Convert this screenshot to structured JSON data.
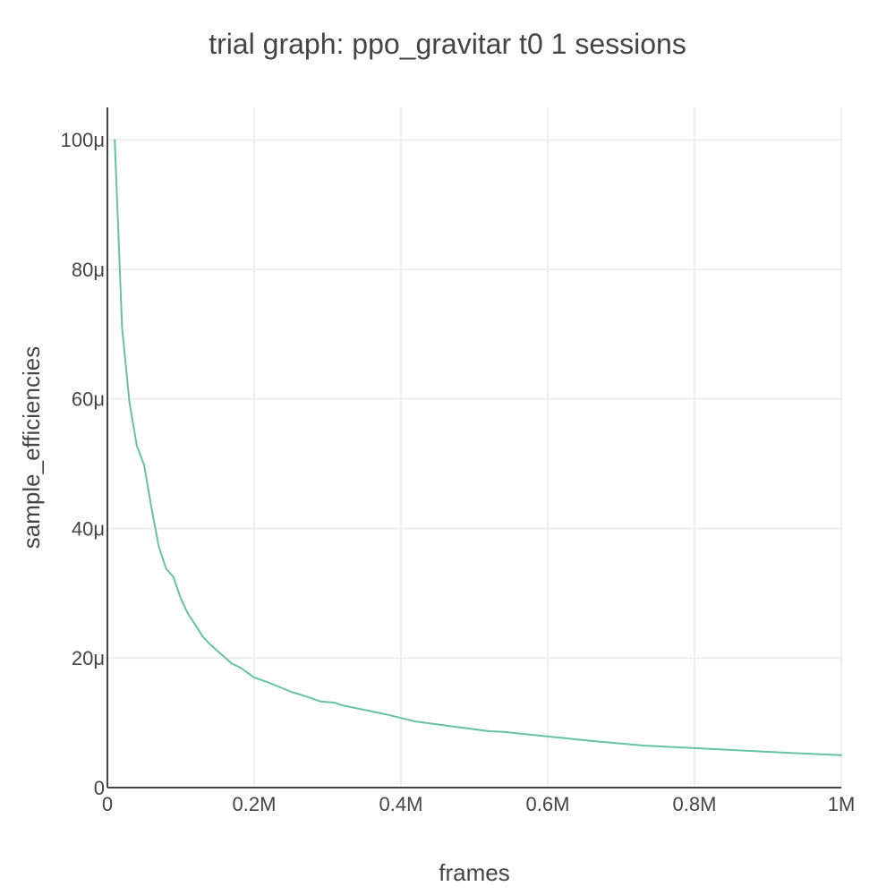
{
  "chart_data": {
    "type": "line",
    "title": "trial graph: ppo_gravitar t0 1 sessions",
    "xlabel": "frames",
    "ylabel": "sample_efficiencies",
    "xlim": [
      0,
      1000000
    ],
    "ylim": [
      0,
      0.000105
    ],
    "x_ticks": [
      {
        "value": 0,
        "label": "0"
      },
      {
        "value": 200000,
        "label": "0.2M"
      },
      {
        "value": 400000,
        "label": "0.4M"
      },
      {
        "value": 600000,
        "label": "0.6M"
      },
      {
        "value": 800000,
        "label": "0.8M"
      },
      {
        "value": 1000000,
        "label": "1M"
      }
    ],
    "y_ticks": [
      {
        "value": 0,
        "label": "0"
      },
      {
        "value": 2e-05,
        "label": "20μ"
      },
      {
        "value": 4e-05,
        "label": "40μ"
      },
      {
        "value": 6e-05,
        "label": "60μ"
      },
      {
        "value": 8e-05,
        "label": "80μ"
      },
      {
        "value": 0.0001,
        "label": "100μ"
      }
    ],
    "grid": true,
    "series": [
      {
        "color": "#66c2a5",
        "x": [
          10000,
          20000,
          30000,
          40000,
          50000,
          60000,
          70000,
          80000,
          90000,
          100000,
          110000,
          120000,
          130000,
          140000,
          150000,
          160000,
          170000,
          180000,
          190000,
          200000,
          220000,
          250000,
          270000,
          290000,
          310000,
          320000,
          350000,
          380000,
          420000,
          460000,
          520000,
          540000,
          600000,
          660000,
          730000,
          800000,
          870000,
          940000,
          1000000
        ],
        "y": [
          0.0001,
          7.1e-05,
          5.95e-05,
          5.28e-05,
          4.98e-05,
          4.32e-05,
          3.72e-05,
          3.38e-05,
          3.25e-05,
          2.92e-05,
          2.68e-05,
          2.51e-05,
          2.33e-05,
          2.21e-05,
          2.11e-05,
          2.01e-05,
          1.91e-05,
          1.86e-05,
          1.78e-05,
          1.7e-05,
          1.62e-05,
          1.48e-05,
          1.41e-05,
          1.33e-05,
          1.31e-05,
          1.27e-05,
          1.2e-05,
          1.13e-05,
          1.02e-05,
          9.6e-06,
          8.7e-06,
          8.6e-06,
          7.9e-06,
          7.2e-06,
          6.5e-06,
          6.1e-06,
          5.7e-06,
          5.3e-06,
          5e-06
        ]
      }
    ]
  },
  "style": {
    "axis_color": "#444444",
    "grid_color": "#eeeeee",
    "text_color": "#444444"
  }
}
